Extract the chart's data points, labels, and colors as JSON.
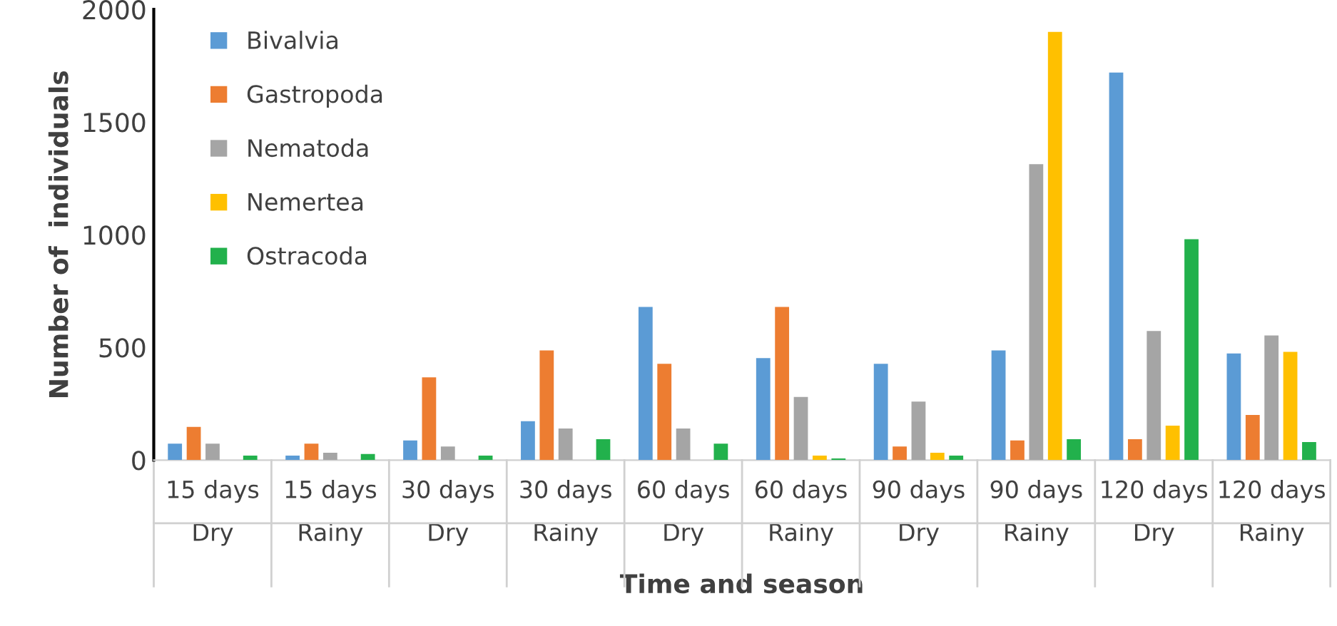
{
  "chart_data": {
    "type": "bar",
    "xlabel": "Time and season",
    "ylabel": "Number of  individuals",
    "categories": [
      "15 days\nDry",
      "15 days\nRainy",
      "30 days\nDry",
      "30 days\nRainy",
      "60 days\nDry",
      "60 days\nRainy",
      "90 days\nDry",
      "90 days\nRainy",
      "120 days\nDry",
      "120 days\nRainy"
    ],
    "series": [
      {
        "name": "Bivalvia",
        "color": "#5b9bd5",
        "values": [
          73,
          20,
          87,
          173,
          680,
          453,
          427,
          487,
          1720,
          473
        ]
      },
      {
        "name": "Gastropoda",
        "color": "#ed7d31",
        "values": [
          147,
          73,
          367,
          487,
          427,
          680,
          60,
          87,
          93,
          200
        ]
      },
      {
        "name": "Nematoda",
        "color": "#a5a5a5",
        "values": [
          73,
          33,
          60,
          140,
          140,
          280,
          260,
          1313,
          573,
          553
        ]
      },
      {
        "name": "Nemertea",
        "color": "#ffc000",
        "values": [
          0,
          0,
          0,
          null,
          0,
          20,
          33,
          1900,
          153,
          480
        ]
      },
      {
        "name": "Ostracoda",
        "color": "#22b14c",
        "values": [
          20,
          27,
          20,
          93,
          73,
          7,
          20,
          93,
          980,
          80
        ]
      }
    ],
    "ylim": [
      0,
      2000
    ],
    "yticks": [
      0,
      500,
      1000,
      1500,
      2000
    ],
    "grid": false,
    "legend": "top left"
  }
}
